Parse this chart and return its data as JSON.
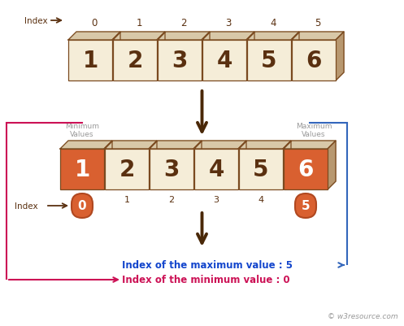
{
  "bg_color": "#ffffff",
  "array_values": [
    1,
    2,
    3,
    4,
    5,
    6
  ],
  "highlight_min_idx": 0,
  "highlight_max_idx": 5,
  "box_color_normal": "#f5edd8",
  "box_color_highlight": "#d96030",
  "box_edge_color": "#7a4a20",
  "box_3d_color_top": "#d8c8a8",
  "box_3d_color_side": "#b89870",
  "pill_color": "#d96030",
  "pill_edge_color": "#b04820",
  "text_color_dark": "#5a3010",
  "text_color_white": "#ffffff",
  "text_color_blue": "#1144cc",
  "text_color_pink": "#cc1155",
  "text_color_gray": "#999999",
  "arrow_color_dark": "#4a2808",
  "arrow_color_blue": "#3366bb",
  "arrow_color_pink": "#cc1155",
  "label_max": "Maximum\nValues",
  "label_min": "Minimum\nValues",
  "label_index": "Index",
  "result_max": "Index of the maximum value : 5",
  "result_min": "Index of the minimum value : 0",
  "watermark": "© w3resource.com"
}
